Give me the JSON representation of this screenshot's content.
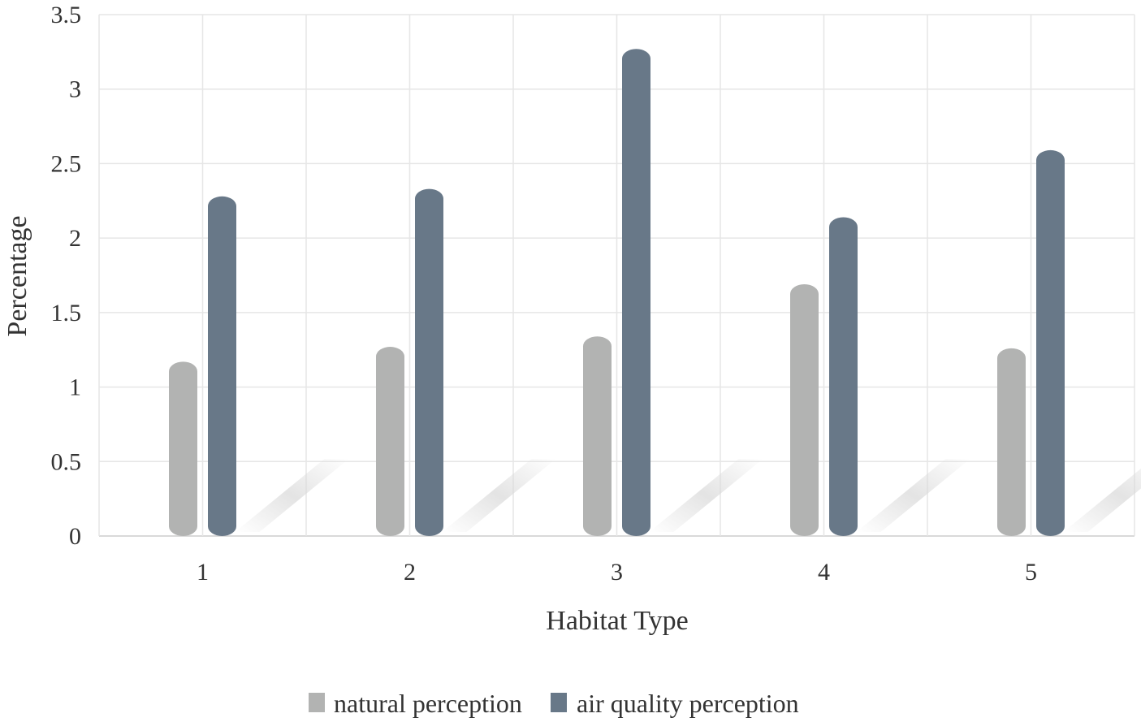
{
  "chart_data": {
    "type": "bar",
    "title": "",
    "xlabel": "Habitat Type",
    "ylabel": "Percentage",
    "categories": [
      "1",
      "2",
      "3",
      "4",
      "5"
    ],
    "series": [
      {
        "name": "natural perception",
        "values": [
          1.17,
          1.27,
          1.34,
          1.69,
          1.26
        ],
        "color": "#b2b3b2"
      },
      {
        "name": "air quality perception",
        "values": [
          2.28,
          2.33,
          3.27,
          2.14,
          2.59
        ],
        "color": "#687888"
      }
    ],
    "ylim": [
      0,
      3.5
    ],
    "yticks": [
      "0",
      "0.5",
      "1",
      "1.5",
      "2",
      "2.5",
      "3",
      "3.5"
    ],
    "grid": true,
    "legend_position": "bottom-center"
  }
}
